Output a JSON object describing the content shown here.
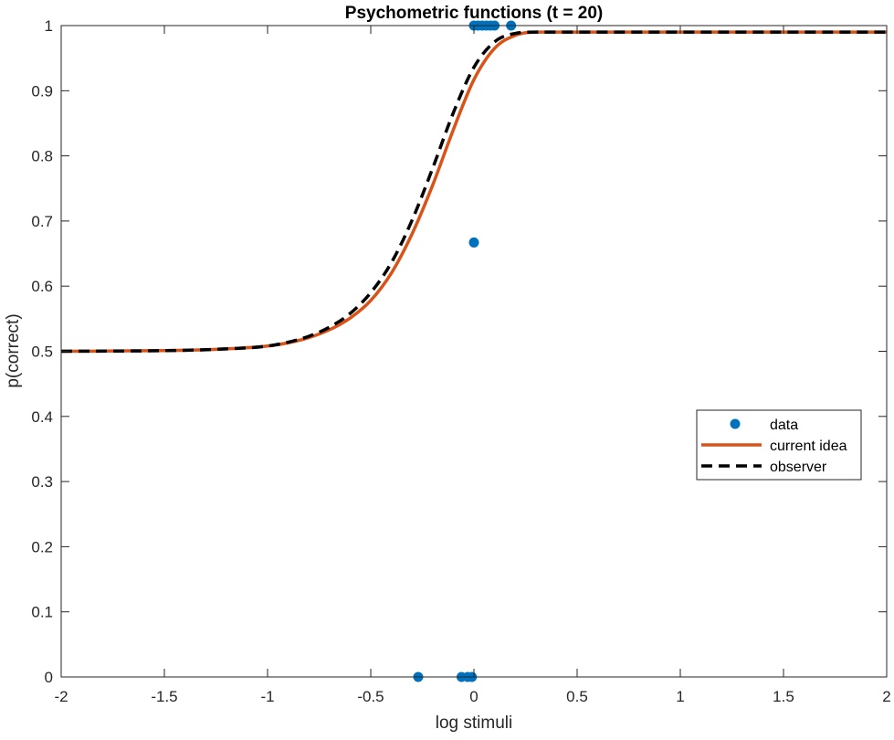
{
  "chart_data": {
    "type": "line",
    "title": "Psychometric functions (t = 20)",
    "xlabel": "log stimuli",
    "ylabel": "p(correct)",
    "xlim": [
      -2,
      2
    ],
    "ylim": [
      0,
      1
    ],
    "xticks": [
      -2,
      -1.5,
      -1,
      -0.5,
      0,
      0.5,
      1,
      1.5,
      2
    ],
    "xtick_labels": [
      "-2",
      "-1.5",
      "-1",
      "-0.5",
      "0",
      "0.5",
      "1",
      "1.5",
      "2"
    ],
    "yticks": [
      0,
      0.1,
      0.2,
      0.3,
      0.4,
      0.5,
      0.6,
      0.7,
      0.8,
      0.9,
      1
    ],
    "ytick_labels": [
      "0",
      "0.1",
      "0.2",
      "0.3",
      "0.4",
      "0.5",
      "0.6",
      "0.7",
      "0.8",
      "0.9",
      "1"
    ],
    "grid": false,
    "legend_position": "right",
    "series": [
      {
        "name": "data",
        "kind": "scatter",
        "color": "#0072BD",
        "x": [
          -0.27,
          -0.06,
          -0.03,
          -0.01,
          0.0,
          0.02,
          0.04,
          0.06,
          0.08,
          0.1,
          0.18,
          0.0
        ],
        "y": [
          0,
          0,
          0,
          0,
          1,
          1,
          1,
          1,
          1,
          1,
          1,
          0.667
        ]
      },
      {
        "name": "current idea",
        "kind": "line",
        "style": "solid",
        "color": "#D95319",
        "x": [
          -2,
          -1.5,
          -1.25,
          -1,
          -0.9,
          -0.8,
          -0.7,
          -0.6,
          -0.5,
          -0.4,
          -0.3,
          -0.2,
          -0.1,
          0,
          0.1,
          0.2,
          0.3,
          0.4,
          0.5,
          1,
          1.5,
          2
        ],
        "y": [
          0.5,
          0.501,
          0.503,
          0.508,
          0.513,
          0.521,
          0.533,
          0.551,
          0.578,
          0.62,
          0.68,
          0.755,
          0.84,
          0.917,
          0.965,
          0.985,
          0.99,
          0.99,
          0.99,
          0.99,
          0.99,
          0.99
        ]
      },
      {
        "name": "observer",
        "kind": "line",
        "style": "dashed",
        "color": "#000000",
        "x": [
          -2,
          -1.5,
          -1.25,
          -1,
          -0.9,
          -0.8,
          -0.7,
          -0.6,
          -0.5,
          -0.4,
          -0.3,
          -0.2,
          -0.1,
          0,
          0.1,
          0.2,
          0.3,
          0.4,
          0.5,
          1,
          1.5,
          2
        ],
        "y": [
          0.5,
          0.501,
          0.503,
          0.508,
          0.514,
          0.523,
          0.537,
          0.558,
          0.59,
          0.636,
          0.701,
          0.781,
          0.866,
          0.936,
          0.975,
          0.988,
          0.99,
          0.99,
          0.99,
          0.99,
          0.99,
          0.99
        ]
      }
    ]
  }
}
